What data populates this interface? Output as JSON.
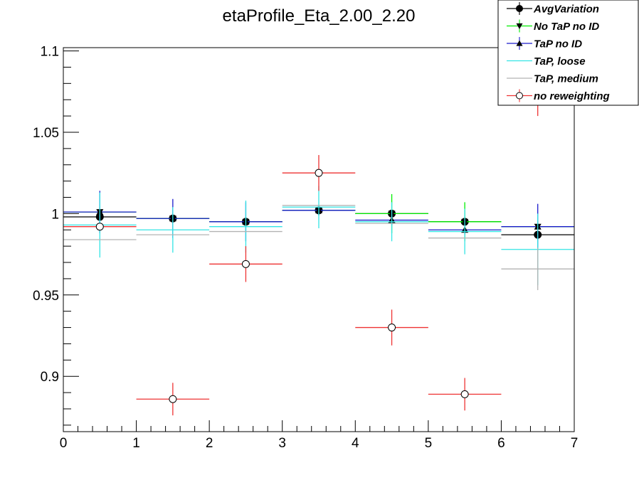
{
  "chart_data": {
    "type": "scatter",
    "title": "etaProfile_Eta_2.00_2.20",
    "xlabel": "",
    "ylabel": "",
    "xlim": [
      0,
      7
    ],
    "ylim": [
      0.866,
      1.102
    ],
    "x_ticks": [
      0,
      1,
      2,
      3,
      4,
      5,
      6,
      7
    ],
    "y_ticks": [
      0.9,
      0.95,
      1,
      1.05,
      1.1
    ],
    "y_tick_labels": [
      "0.9",
      "0.95",
      "1",
      "1.05",
      "1.1"
    ],
    "grid": false,
    "legend_placement": "top-right",
    "bins": [
      [
        0,
        1
      ],
      [
        1,
        2
      ],
      [
        2,
        3
      ],
      [
        3,
        4
      ],
      [
        4,
        5
      ],
      [
        5,
        6
      ],
      [
        6,
        7
      ]
    ],
    "series": [
      {
        "name": "AvgVariation",
        "color": "#000000",
        "marker": "filled-circle",
        "draw_markers": true,
        "values": [
          0.998,
          0.997,
          0.995,
          1.002,
          1.0,
          0.995,
          0.987
        ],
        "errors": [
          0.003,
          0.002,
          0.002,
          0.002,
          0.002,
          0.002,
          0.003
        ]
      },
      {
        "name": "No TaP no ID",
        "color": "#00ee00",
        "marker": "down-triangle",
        "draw_markers": true,
        "values": [
          1.001,
          0.997,
          0.995,
          1.002,
          1.0,
          0.995,
          0.992
        ],
        "errors": [
          0.003,
          0.003,
          0.003,
          0.003,
          0.012,
          0.012,
          0.003
        ]
      },
      {
        "name": "TaP no ID",
        "color": "#1a1acc",
        "marker": "up-triangle",
        "draw_markers": true,
        "values": [
          1.001,
          0.997,
          0.995,
          1.002,
          0.996,
          0.99,
          0.992
        ],
        "errors": [
          0.013,
          0.012,
          0.012,
          0.003,
          0.003,
          0.003,
          0.014
        ]
      },
      {
        "name": "TaP, loose",
        "color": "#33e5e5",
        "marker": "none",
        "draw_markers": false,
        "values": [
          0.993,
          0.99,
          0.992,
          1.004,
          0.995,
          0.989,
          0.978
        ],
        "errors": [
          0.02,
          0.014,
          0.016,
          0.013,
          0.012,
          0.014,
          0.022
        ]
      },
      {
        "name": "TaP, medium",
        "color": "#b3b3b3",
        "marker": "none",
        "draw_markers": false,
        "values": [
          0.984,
          0.987,
          0.989,
          1.005,
          0.994,
          0.985,
          0.966
        ],
        "errors": [
          0.0,
          0.0,
          0.0,
          0.0,
          0.0,
          0.0,
          0.013
        ]
      },
      {
        "name": "no reweighting",
        "color": "#ee3333",
        "marker": "open-circle",
        "draw_markers": true,
        "values": [
          0.992,
          0.886,
          0.969,
          1.025,
          0.93,
          0.889,
          1.072
        ],
        "errors": [
          0.0,
          0.01,
          0.011,
          0.011,
          0.011,
          0.01,
          0.012
        ]
      }
    ]
  }
}
